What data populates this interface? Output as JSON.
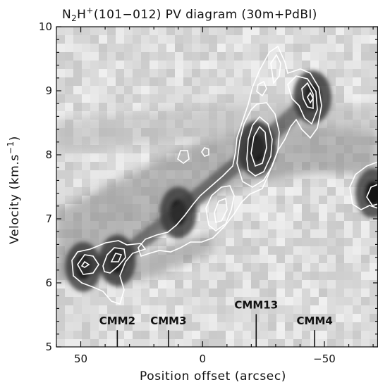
{
  "chart_data": {
    "type": "heatmap",
    "title": {
      "prefix": "N",
      "sub": "2",
      "mid": "H",
      "sup": "+",
      "rest": "(101−012) PV diagram (30m+PdBI)"
    },
    "xlabel": "Position offset (arcsec)",
    "ylabel": {
      "prefix": "Velocity (km.s",
      "sup": "−1",
      "suffix": ")"
    },
    "xlim": [
      60,
      -72
    ],
    "ylim": [
      5,
      10
    ],
    "x_reversed": true,
    "xticks": [
      50,
      0,
      -50
    ],
    "xtick_labels": [
      "50",
      "0",
      "−50"
    ],
    "yticks": [
      5,
      6,
      7,
      8,
      9,
      10
    ],
    "ytick_labels": [
      "5",
      "6",
      "7",
      "8",
      "9",
      "10"
    ],
    "colormap": "grayscale (dark = high intensity)",
    "contour_color": "#ffffff",
    "emission_ridge": [
      {
        "x": 49,
        "y": 6.25,
        "peak": 0.85
      },
      {
        "x": 35,
        "y": 6.35,
        "peak": 0.9
      },
      {
        "x": 10,
        "y": 7.1,
        "peak": 0.9
      },
      {
        "x": -22,
        "y": 8.1,
        "peak": 1.0
      },
      {
        "x": -45,
        "y": 8.9,
        "peak": 0.95
      },
      {
        "x": -70,
        "y": 7.4,
        "peak": 0.85
      }
    ],
    "annotations": [
      {
        "label": "CMM2",
        "x": 35,
        "y": 5.35
      },
      {
        "label": "CMM3",
        "x": 14,
        "y": 5.35
      },
      {
        "label": "CMM13",
        "x": -22,
        "y": 5.6
      },
      {
        "label": "CMM4",
        "x": -46,
        "y": 5.35
      }
    ]
  }
}
